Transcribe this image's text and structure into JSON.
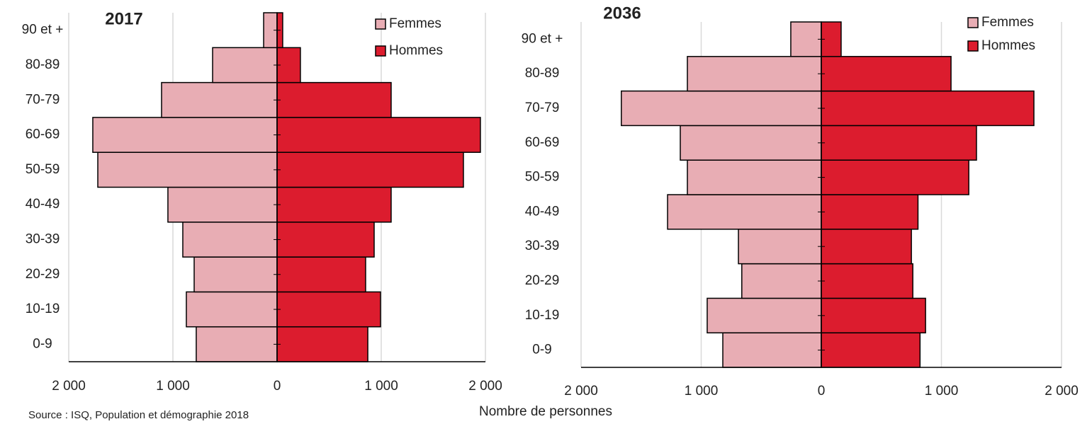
{
  "chart_data": [
    {
      "type": "pyramid",
      "title": "2017",
      "categories": [
        "0-9",
        "10-19",
        "20-29",
        "30-39",
        "40-49",
        "50-59",
        "60-69",
        "70-79",
        "80-89",
        "90 et +"
      ],
      "series": [
        {
          "name": "Femmes",
          "color": "#e8adb4",
          "values": [
            776,
            871,
            796,
            905,
            1048,
            1721,
            1769,
            1109,
            619,
            129
          ]
        },
        {
          "name": "Hommes",
          "color": "#dc1c2e",
          "values": [
            871,
            993,
            850,
            932,
            1095,
            1789,
            1952,
            1095,
            224,
            54
          ]
        }
      ],
      "xlim": [
        0,
        2000
      ],
      "xticks": [
        0,
        {
          "value": 1000,
          "label": "1 000"
        },
        {
          "value": 2000,
          "label": "2 000"
        }
      ],
      "grid": true
    },
    {
      "type": "pyramid",
      "title": "2036",
      "categories": [
        "0-9",
        "10-19",
        "20-29",
        "30-39",
        "40-49",
        "50-59",
        "60-69",
        "70-79",
        "80-89",
        "90 et +"
      ],
      "series": [
        {
          "name": "Femmes",
          "color": "#e8adb4",
          "values": [
            820,
            950,
            662,
            690,
            1280,
            1115,
            1174,
            1665,
            1115,
            254
          ]
        },
        {
          "name": "Hommes",
          "color": "#dc1c2e",
          "values": [
            822,
            868,
            762,
            750,
            805,
            1228,
            1292,
            1770,
            1080,
            165
          ]
        }
      ],
      "xlim": [
        0,
        2000
      ],
      "xticks": [
        0,
        {
          "value": 1000,
          "label": "1 000"
        },
        {
          "value": 2000,
          "label": "2 000"
        }
      ],
      "grid": true
    }
  ],
  "xlabel": "Nombre de personnes",
  "source": "Source : ISQ, Population et démographie 2018"
}
